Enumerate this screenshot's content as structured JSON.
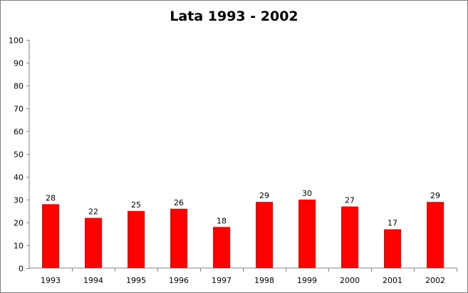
{
  "chart_data": {
    "type": "bar",
    "title": "Lata 1993 - 2002",
    "xlabel": "",
    "ylabel": "",
    "categories": [
      "1993",
      "1994",
      "1995",
      "1996",
      "1997",
      "1998",
      "1999",
      "2000",
      "2001",
      "2002"
    ],
    "values": [
      28,
      22,
      25,
      26,
      18,
      29,
      30,
      27,
      17,
      29
    ],
    "ylim": [
      0,
      100
    ],
    "yticks": [
      0,
      10,
      20,
      30,
      40,
      50,
      60,
      70,
      80,
      90,
      100
    ],
    "grid": false,
    "legend": "none",
    "bar_color": "#ff0000"
  }
}
